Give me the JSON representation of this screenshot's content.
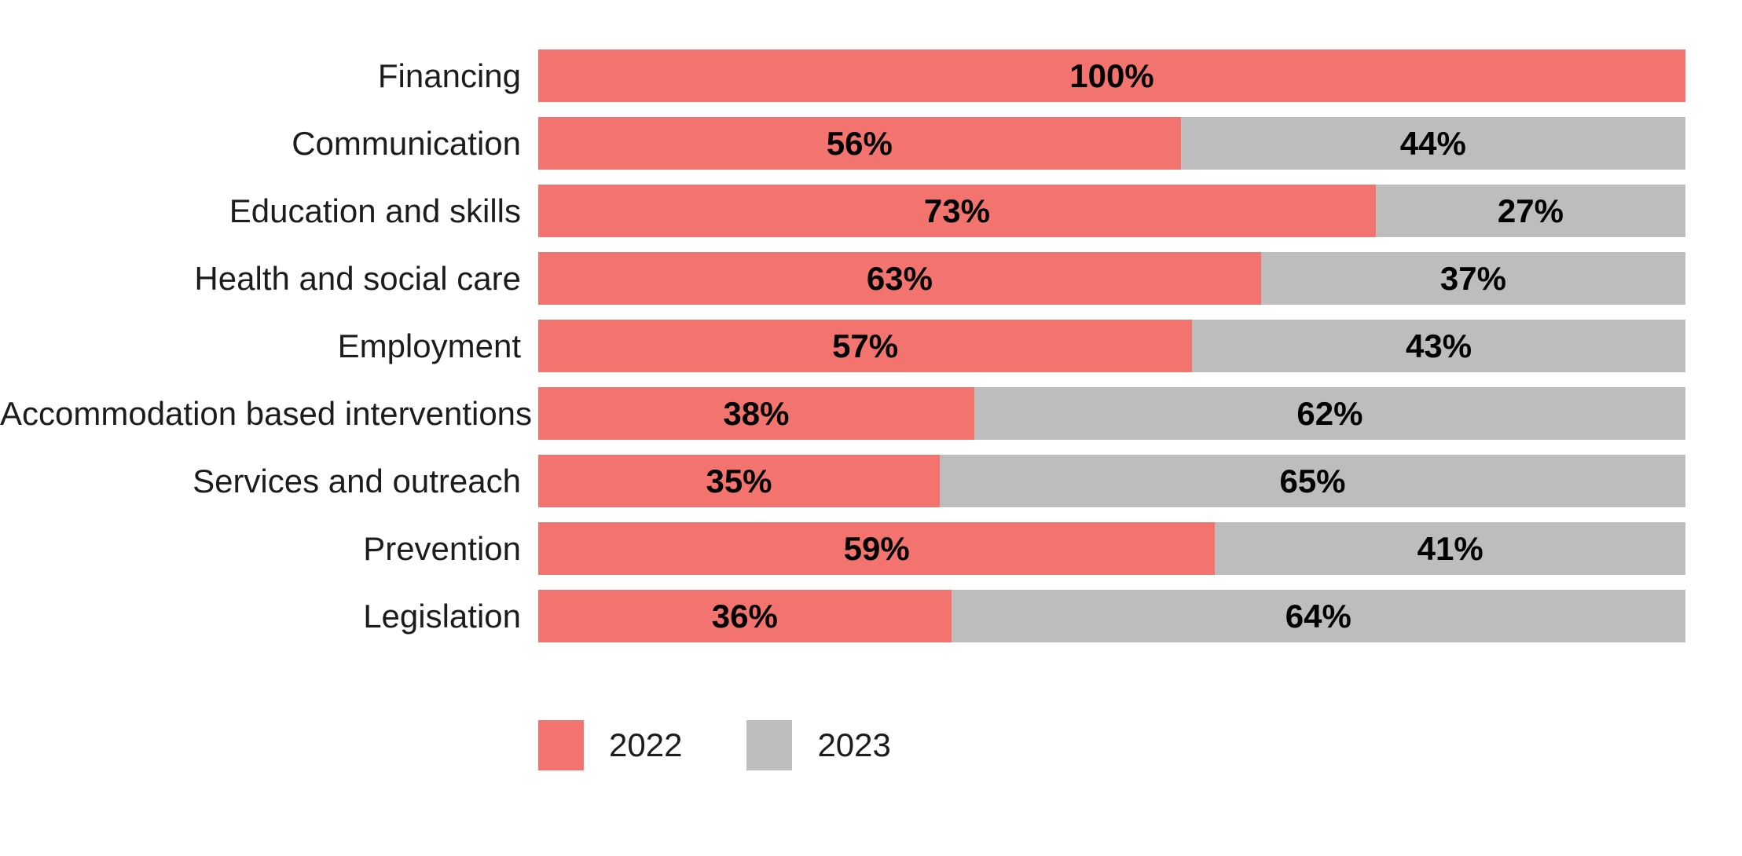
{
  "chart_data": {
    "type": "bar",
    "orientation": "horizontal",
    "stacked": true,
    "unit": "%",
    "title": "",
    "xlabel": "",
    "ylabel": "",
    "xlim": [
      0,
      100
    ],
    "grid": false,
    "legend_position": "bottom",
    "background_color": "#ffffff",
    "value_label_color": "#000000",
    "category_label_color": "#1c1c1c",
    "categories": [
      "Financing",
      "Communication",
      "Education and skills",
      "Health and social care",
      "Employment",
      "Accommodation based interventions",
      "Services and outreach",
      "Prevention",
      "Legislation"
    ],
    "series": [
      {
        "name": "2022",
        "color": "#F3736F",
        "values": [
          100,
          56,
          73,
          63,
          57,
          38,
          35,
          59,
          36
        ]
      },
      {
        "name": "2023",
        "color": "#BDBDBD",
        "values": [
          0,
          44,
          27,
          37,
          43,
          62,
          65,
          41,
          64
        ]
      }
    ],
    "value_labels": {
      "y2022": [
        "100%",
        "56%",
        "73%",
        "63%",
        "57%",
        "38%",
        "35%",
        "59%",
        "36%"
      ],
      "y2023": [
        "",
        "44%",
        "27%",
        "37%",
        "43%",
        "62%",
        "65%",
        "41%",
        "64%"
      ]
    }
  }
}
